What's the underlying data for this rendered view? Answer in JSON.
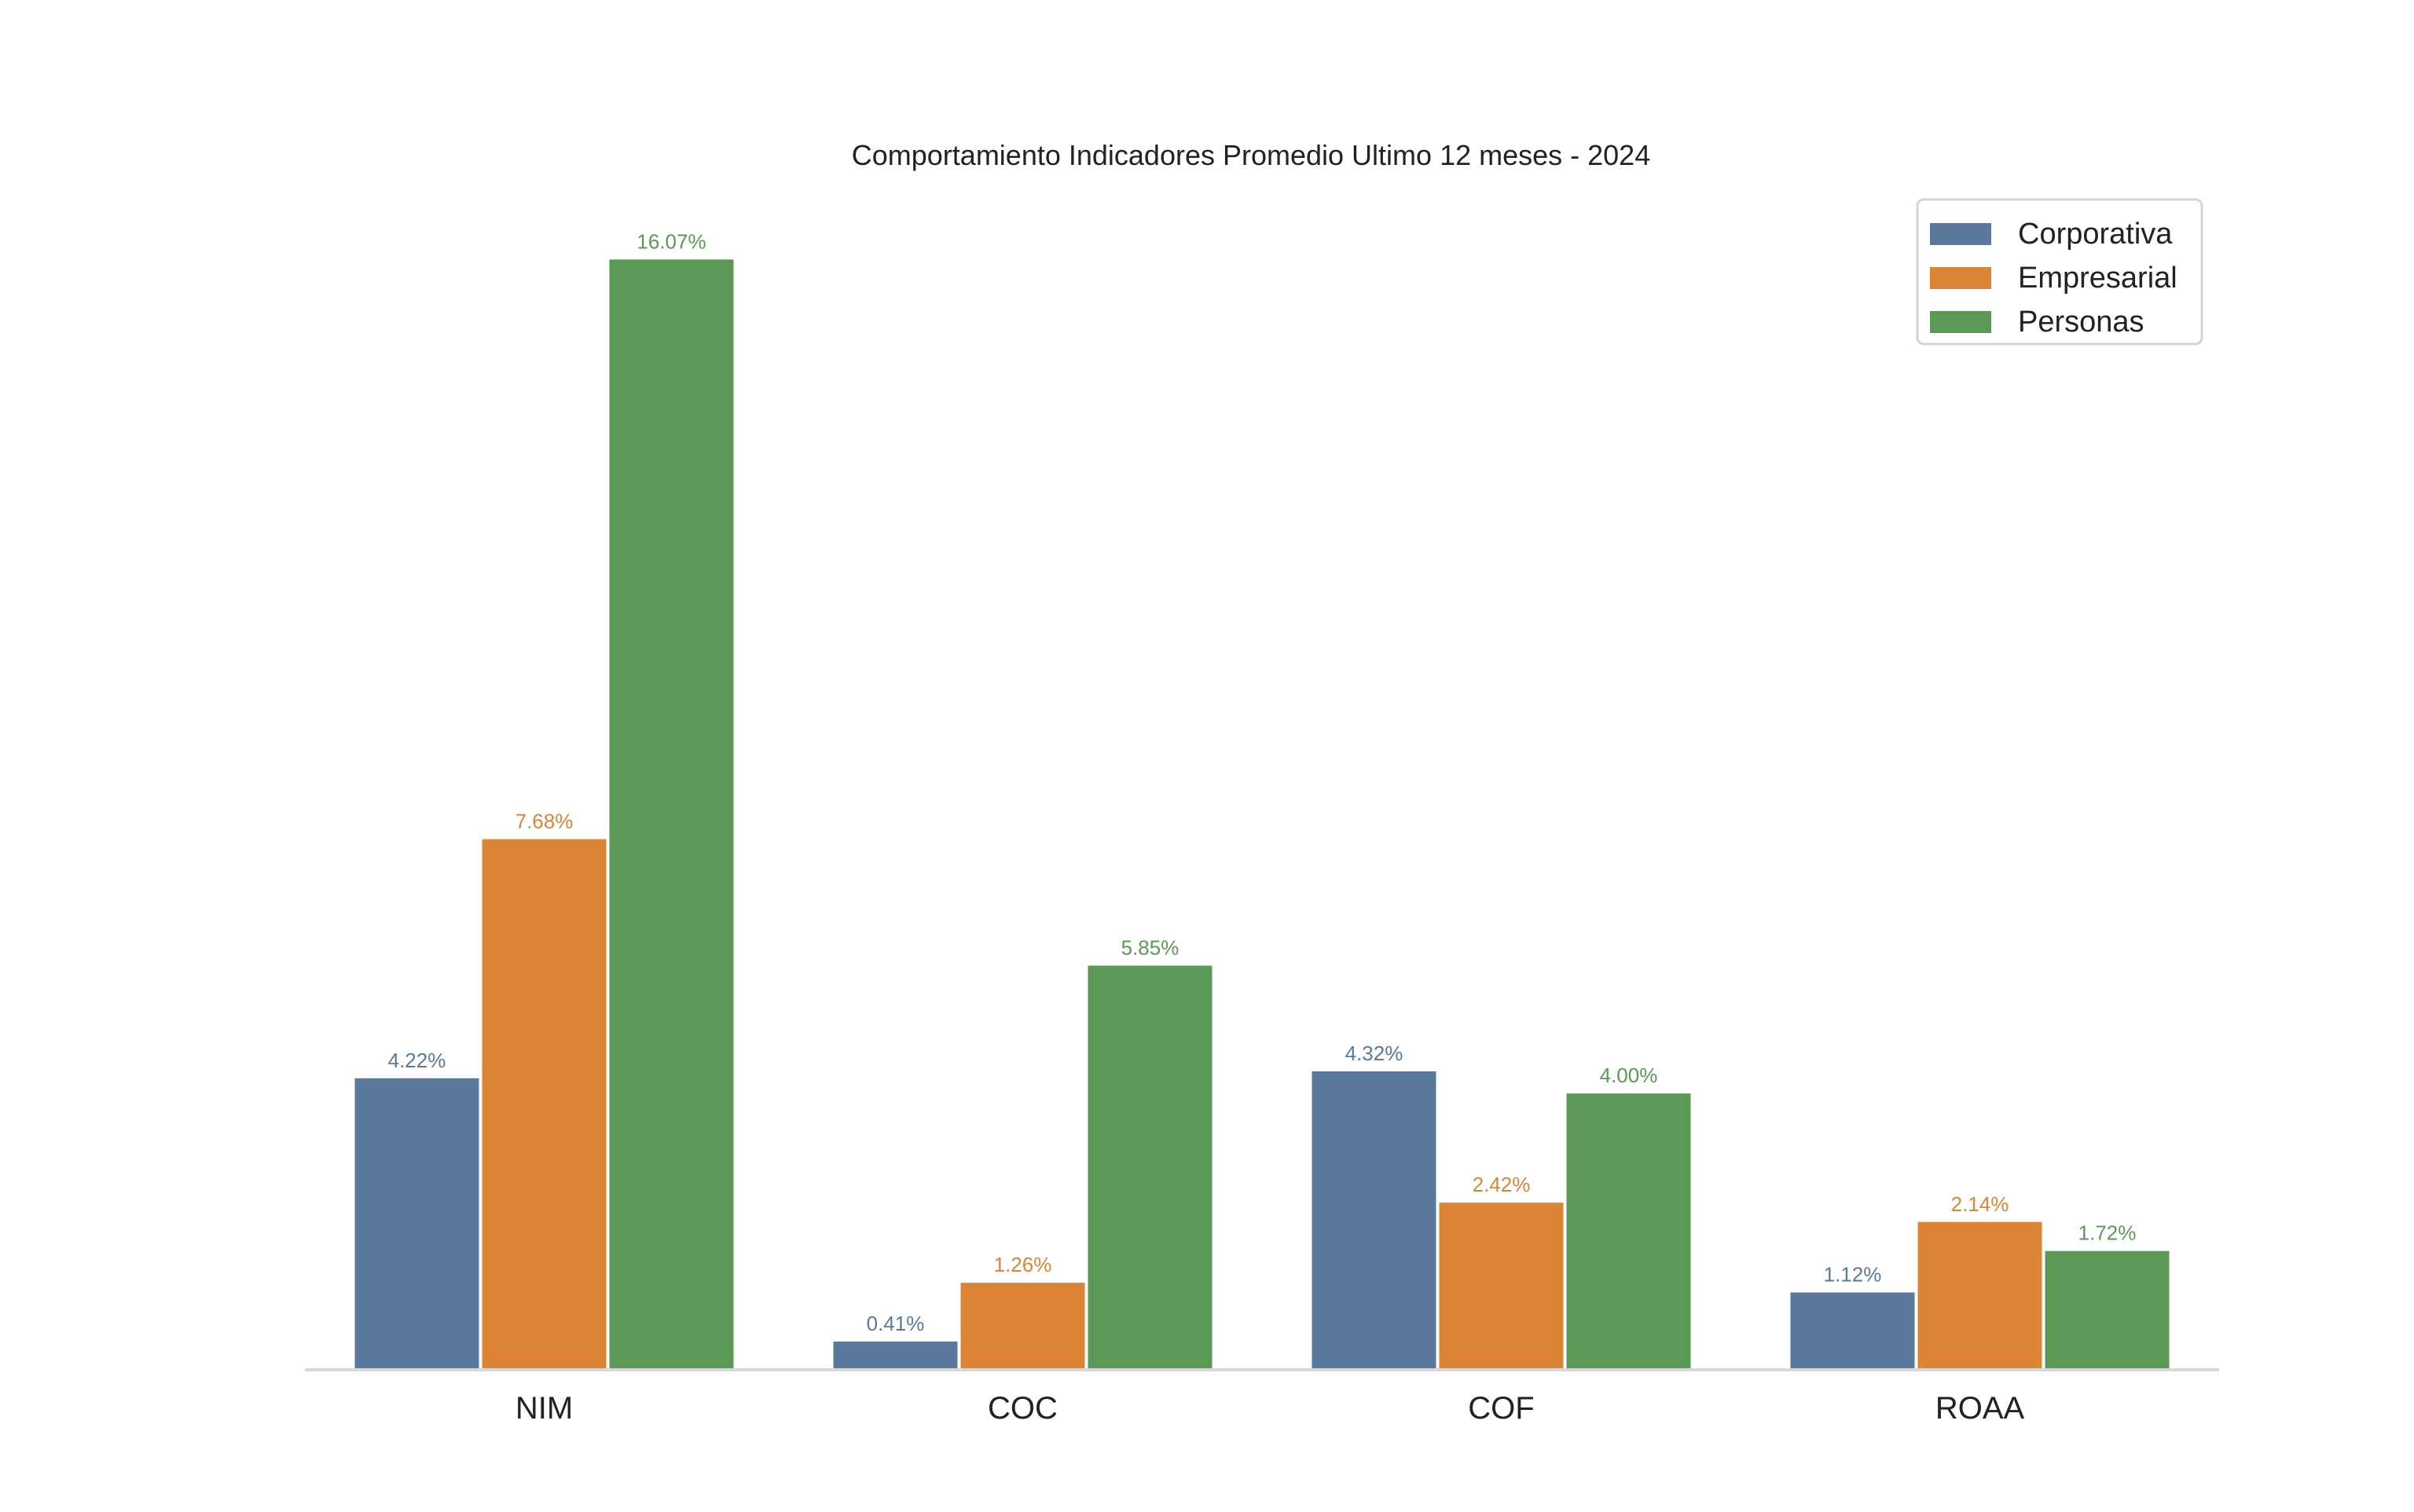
{
  "chart_data": {
    "type": "bar",
    "title": "Comportamiento Indicadores Promedio Ultimo 12 meses - 2024",
    "xlabel": "",
    "ylabel": "",
    "categories": [
      "NIM",
      "COC",
      "COF",
      "ROAA"
    ],
    "series": [
      {
        "name": "Corporativa",
        "color": "#59799D",
        "values": [
          4.22,
          0.41,
          4.32,
          1.12
        ],
        "labels": [
          "4.22%",
          "0.41%",
          "4.32%",
          "1.12%"
        ]
      },
      {
        "name": "Empresarial",
        "color": "#DB8535",
        "values": [
          7.68,
          1.26,
          2.42,
          2.14
        ],
        "labels": [
          "7.68%",
          "1.26%",
          "2.42%",
          "2.14%"
        ]
      },
      {
        "name": "Personas",
        "color": "#5C9856",
        "values": [
          16.07,
          5.85,
          4.0,
          1.72
        ],
        "labels": [
          "16.07%",
          "5.85%",
          "4.00%",
          "1.72%"
        ]
      }
    ],
    "ylim": [
      0,
      16.87
    ],
    "grid": false,
    "legend_position": "top-right",
    "axis_color": "#d9d9d9",
    "text_color": "#222222"
  }
}
